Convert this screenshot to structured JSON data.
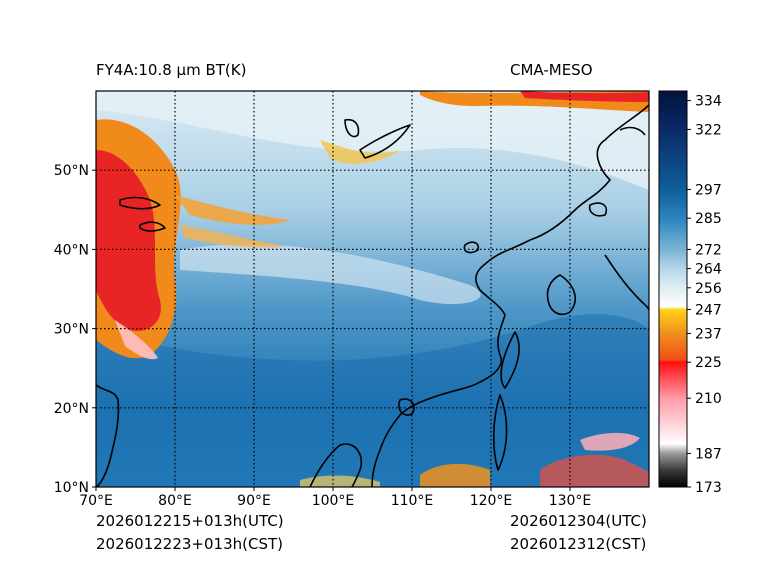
{
  "header": {
    "product_title": "FY4A:10.8 µm BT(K)",
    "model_label": "CMA-MESO"
  },
  "footer": {
    "init_utc": "2026012215+013h(UTC)",
    "init_cst": "2026012223+013h(CST)",
    "valid_utc": "2026012304(UTC)",
    "valid_cst": "2026012312(CST)"
  },
  "axes": {
    "lon_min": 70,
    "lon_max": 140,
    "lat_min": 10,
    "lat_max": 60,
    "lon_ticks": [
      {
        "value": 70,
        "label": "70°E"
      },
      {
        "value": 80,
        "label": "80°E"
      },
      {
        "value": 90,
        "label": "90°E"
      },
      {
        "value": 100,
        "label": "100°E"
      },
      {
        "value": 110,
        "label": "110°E"
      },
      {
        "value": 120,
        "label": "120°E"
      },
      {
        "value": 130,
        "label": "130°E"
      }
    ],
    "lat_ticks": [
      {
        "value": 50,
        "label": "50°N"
      },
      {
        "value": 40,
        "label": "40°N"
      },
      {
        "value": 30,
        "label": "30°N"
      },
      {
        "value": 20,
        "label": "20°N"
      },
      {
        "value": 10,
        "label": "10°N"
      }
    ]
  },
  "colorbar": {
    "min": 173,
    "max": 338,
    "ticks": [
      334,
      322,
      297,
      285,
      272,
      264,
      256,
      247,
      237,
      225,
      210,
      187,
      173
    ],
    "stops": [
      {
        "value": 173,
        "color": "#000000"
      },
      {
        "value": 180,
        "color": "#3a3a3a"
      },
      {
        "value": 187,
        "color": "#9a9a9a"
      },
      {
        "value": 191,
        "color": "#ffffff"
      },
      {
        "value": 210,
        "color": "#ff9aa8"
      },
      {
        "value": 225,
        "color": "#ff1010"
      },
      {
        "value": 226,
        "color": "#f05018"
      },
      {
        "value": 237,
        "color": "#f0901c"
      },
      {
        "value": 247,
        "color": "#ffd21a"
      },
      {
        "value": 248,
        "color": "#ffffff"
      },
      {
        "value": 256,
        "color": "#e0edf4"
      },
      {
        "value": 264,
        "color": "#b4d6e8"
      },
      {
        "value": 272,
        "color": "#7ab3d4"
      },
      {
        "value": 285,
        "color": "#2b84be"
      },
      {
        "value": 297,
        "color": "#0e5f9a"
      },
      {
        "value": 322,
        "color": "#0a2a68"
      },
      {
        "value": 338,
        "color": "#03123e"
      }
    ]
  },
  "colors": {
    "background_field": "#5a9ac8",
    "cold_cloud": "#f08a1a",
    "very_cold_cloud": "#e82020",
    "high_cloud": "#d8e8f2",
    "coastline": "#000000"
  }
}
